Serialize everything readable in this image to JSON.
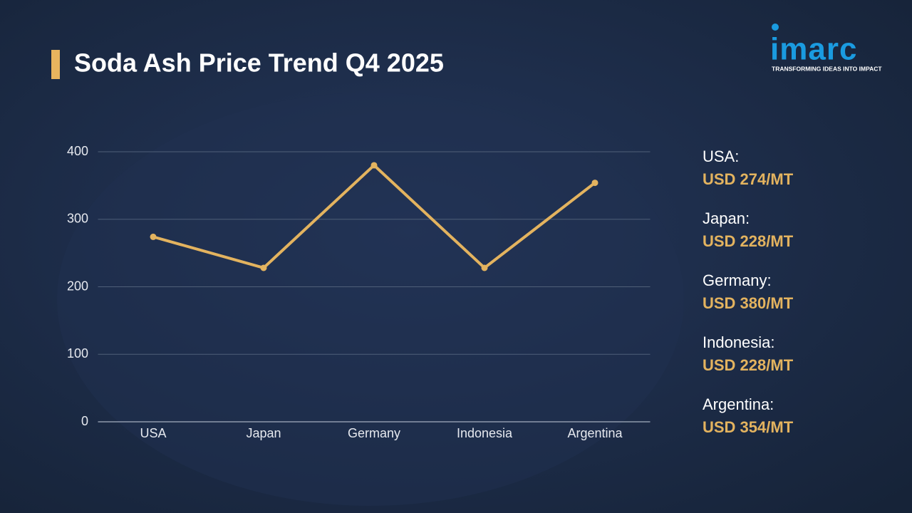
{
  "chart_data": {
    "type": "line",
    "title": "Soda Ash Price Trend Q4 2025",
    "categories": [
      "USA",
      "Japan",
      "Germany",
      "Indonesia",
      "Argentina"
    ],
    "series": [
      {
        "color": "#e3b35f",
        "values": [
          274,
          228,
          380,
          228,
          354
        ],
        "value_labels": [
          "USD 274/MT",
          "USD 228/MT",
          "USD 380/MT",
          "USD 228/MT",
          "USD 354/MT"
        ]
      }
    ],
    "price_list_labels": [
      "USA:",
      "Japan:",
      "Germany:",
      "Indonesia:",
      "Argentina:"
    ],
    "ylim": [
      0,
      400
    ],
    "yticks": [
      0,
      100,
      200,
      300,
      400
    ],
    "grid": true
  },
  "logo": {
    "name": "imarc",
    "tagline": "TRANSFORMING IDEAS INTO IMPACT"
  }
}
